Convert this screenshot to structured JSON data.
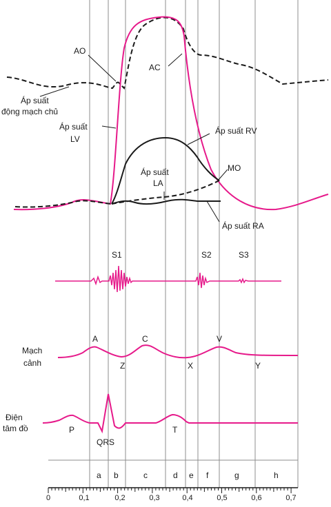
{
  "labels": {
    "ao": "AO",
    "ac": "AC",
    "aortic_pressure_line1": "Áp suất",
    "aortic_pressure_line2": "động mạch chủ",
    "lv_pressure_line1": "Áp suất",
    "lv_pressure_line2": "LV",
    "rv_pressure": "Áp suất RV",
    "la_pressure_line1": "Áp suất",
    "la_pressure_line2": "LA",
    "mo": "MO",
    "ra_pressure": "Áp suất RA",
    "s1": "S1",
    "s2": "S2",
    "s3": "S3",
    "carotid_line1": "Mạch",
    "carotid_line2": "cảnh",
    "carotid_a": "A",
    "carotid_c": "C",
    "carotid_v": "V",
    "carotid_z": "Z",
    "carotid_x": "X",
    "carotid_y": "Y",
    "ecg_line1": "Điện",
    "ecg_line2": "tâm đồ",
    "ecg_p": "P",
    "ecg_qrs": "QRS",
    "ecg_t": "T"
  },
  "phases": [
    "a",
    "b",
    "c",
    "d",
    "e",
    "f",
    "g",
    "h"
  ],
  "time_axis": {
    "ticks": [
      "0",
      "0,1",
      "0,2",
      "0,3",
      "0,4",
      "0,5",
      "0,6",
      "0,7"
    ]
  },
  "colors": {
    "magenta": "#e6198a",
    "black": "#1a1a1a",
    "grid": "#8c8c8c"
  }
}
